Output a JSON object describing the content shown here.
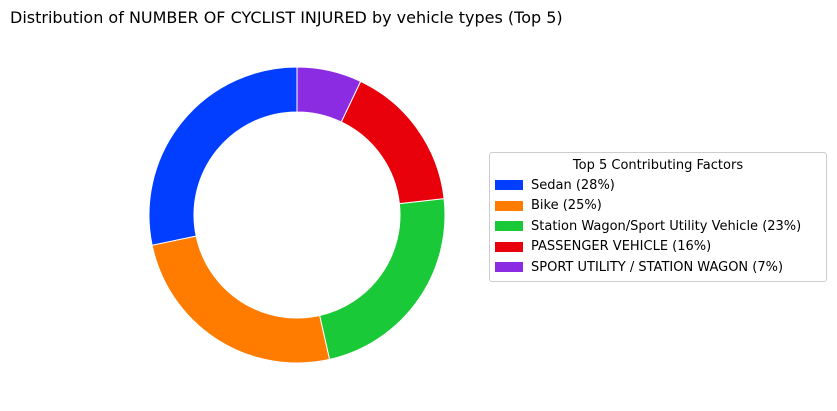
{
  "chart_data": {
    "type": "pie",
    "title": "Distribution of NUMBER OF CYCLIST INJURED by vehicle types (Top 5)",
    "donut": true,
    "start": "top",
    "direction": "counterclockwise",
    "legend": {
      "title": "Top 5 Contributing Factors",
      "placement": "right"
    },
    "categories": [
      "Sedan (28%)",
      "Bike (25%)",
      "Station Wagon/Sport Utility Vehicle (23%)",
      "PASSENGER VEHICLE (16%)",
      "SPORT UTILITY / STATION WAGON (7%)"
    ],
    "values": [
      28,
      25,
      23,
      16,
      7
    ],
    "colors": [
      "#023eff",
      "#ff7c00",
      "#1ac938",
      "#e8000b",
      "#8b2be2"
    ]
  }
}
